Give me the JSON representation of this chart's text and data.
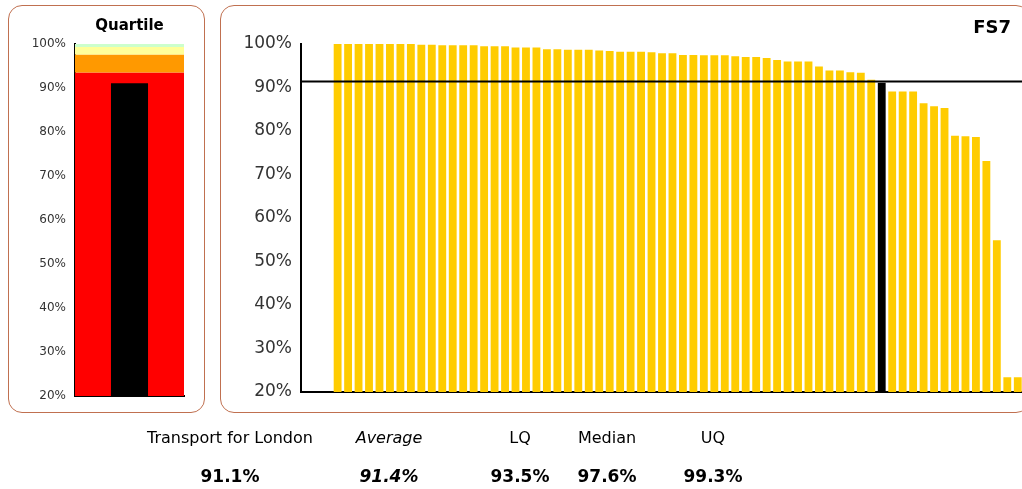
{
  "chart_data": [
    {
      "type": "bar",
      "title": "Quartile",
      "categories": [
        null
      ],
      "legend": false,
      "grid": false,
      "values": [
        91.1
      ],
      "color": "#000000",
      "bands": [
        {
          "axis": "y",
          "from": 20,
          "to": 93.5,
          "color": "#ff0000"
        },
        {
          "axis": "y",
          "from": 93.5,
          "to": 97.6,
          "color": "#ff9900"
        },
        {
          "axis": "y",
          "from": 97.6,
          "to": 99.3,
          "color": "#ffff99"
        },
        {
          "axis": "y",
          "from": 99.3,
          "to": 100,
          "color": "#ccffcc"
        }
      ],
      "ylim": [
        20,
        100
      ],
      "yticks": [
        {
          "value": 20,
          "label": "20%"
        },
        {
          "value": 30,
          "label": "30%"
        },
        {
          "value": 40,
          "label": "40%"
        },
        {
          "value": 50,
          "label": "50%"
        },
        {
          "value": 60,
          "label": "60%"
        },
        {
          "value": 70,
          "label": "70%"
        },
        {
          "value": 80,
          "label": "80%"
        },
        {
          "value": 90,
          "label": "90%"
        },
        {
          "value": 100,
          "label": "100%"
        }
      ]
    },
    {
      "type": "bar",
      "title": "FS7",
      "legend": false,
      "grid": false,
      "categories": [
        null,
        null,
        null,
        null,
        null,
        null,
        null,
        null,
        null,
        null,
        null,
        null,
        null,
        null,
        null,
        null,
        null,
        null,
        null,
        null,
        null,
        null,
        null,
        null,
        null,
        null,
        null,
        null,
        null,
        null,
        null,
        null,
        null,
        null,
        null,
        null,
        null,
        null,
        null,
        null,
        null,
        null,
        null,
        null,
        null,
        null,
        null,
        null,
        null,
        null,
        null,
        null,
        null,
        null,
        null,
        null,
        null,
        null,
        null,
        null,
        null,
        null,
        null,
        null,
        null,
        null,
        null,
        null,
        null
      ],
      "values": [
        null,
        null,
        null,
        100,
        100,
        100,
        100,
        100,
        100,
        100,
        100,
        99.8,
        99.8,
        99.7,
        99.7,
        99.7,
        99.7,
        99.5,
        99.5,
        99.5,
        99.2,
        99.2,
        99.2,
        98.8,
        98.8,
        98.7,
        98.7,
        98.7,
        98.5,
        98.4,
        98.2,
        98.2,
        98.2,
        98.1,
        97.9,
        97.9,
        97.5,
        97.5,
        97.4,
        97.4,
        97.4,
        97.2,
        97.0,
        97.0,
        96.8,
        96.3,
        96.0,
        96.0,
        96.0,
        94.8,
        93.9,
        93.9,
        93.5,
        93.4,
        91.8,
        91.1,
        89.1,
        89.1,
        89.1,
        86.4,
        85.7,
        85.3,
        78.9,
        78.8,
        78.6,
        73.1,
        54.9,
        23.4,
        23.4
      ],
      "colors": [
        "#ffcc00",
        "#ffcc00",
        "#ffcc00",
        "#ffcc00",
        "#ffcc00",
        "#ffcc00",
        "#ffcc00",
        "#ffcc00",
        "#ffcc00",
        "#ffcc00",
        "#ffcc00",
        "#ffcc00",
        "#ffcc00",
        "#ffcc00",
        "#ffcc00",
        "#ffcc00",
        "#ffcc00",
        "#ffcc00",
        "#ffcc00",
        "#ffcc00",
        "#ffcc00",
        "#ffcc00",
        "#ffcc00",
        "#ffcc00",
        "#ffcc00",
        "#ffcc00",
        "#ffcc00",
        "#ffcc00",
        "#ffcc00",
        "#ffcc00",
        "#ffcc00",
        "#ffcc00",
        "#ffcc00",
        "#ffcc00",
        "#ffcc00",
        "#ffcc00",
        "#ffcc00",
        "#ffcc00",
        "#ffcc00",
        "#ffcc00",
        "#ffcc00",
        "#ffcc00",
        "#ffcc00",
        "#ffcc00",
        "#ffcc00",
        "#ffcc00",
        "#ffcc00",
        "#ffcc00",
        "#ffcc00",
        "#ffcc00",
        "#ffcc00",
        "#ffcc00",
        "#ffcc00",
        "#ffcc00",
        "#ffcc00",
        "#000000",
        "#ffcc00",
        "#ffcc00",
        "#ffcc00",
        "#ffcc00",
        "#ffcc00",
        "#ffcc00",
        "#ffcc00",
        "#ffcc00",
        "#ffcc00",
        "#ffcc00",
        "#ffcc00",
        "#ffcc00",
        "#ffcc00"
      ],
      "ylim": [
        20,
        100
      ],
      "yticks": [
        {
          "value": 20,
          "label": "20%"
        },
        {
          "value": 30,
          "label": "30%"
        },
        {
          "value": 40,
          "label": "40%"
        },
        {
          "value": 50,
          "label": "50%"
        },
        {
          "value": 60,
          "label": "60%"
        },
        {
          "value": 70,
          "label": "70%"
        },
        {
          "value": 80,
          "label": "80%"
        },
        {
          "value": 90,
          "label": "90%"
        },
        {
          "value": 100,
          "label": "100%"
        }
      ],
      "ref_lines": [
        {
          "axis": "y",
          "value": 91.4,
          "color": "#000000"
        }
      ],
      "annotations": [
        "Transport for London",
        "Average",
        "LQ",
        "Median",
        "UQ",
        "91.1%",
        "91.4%",
        "93.5%",
        "97.6%",
        "99.3%"
      ]
    }
  ]
}
